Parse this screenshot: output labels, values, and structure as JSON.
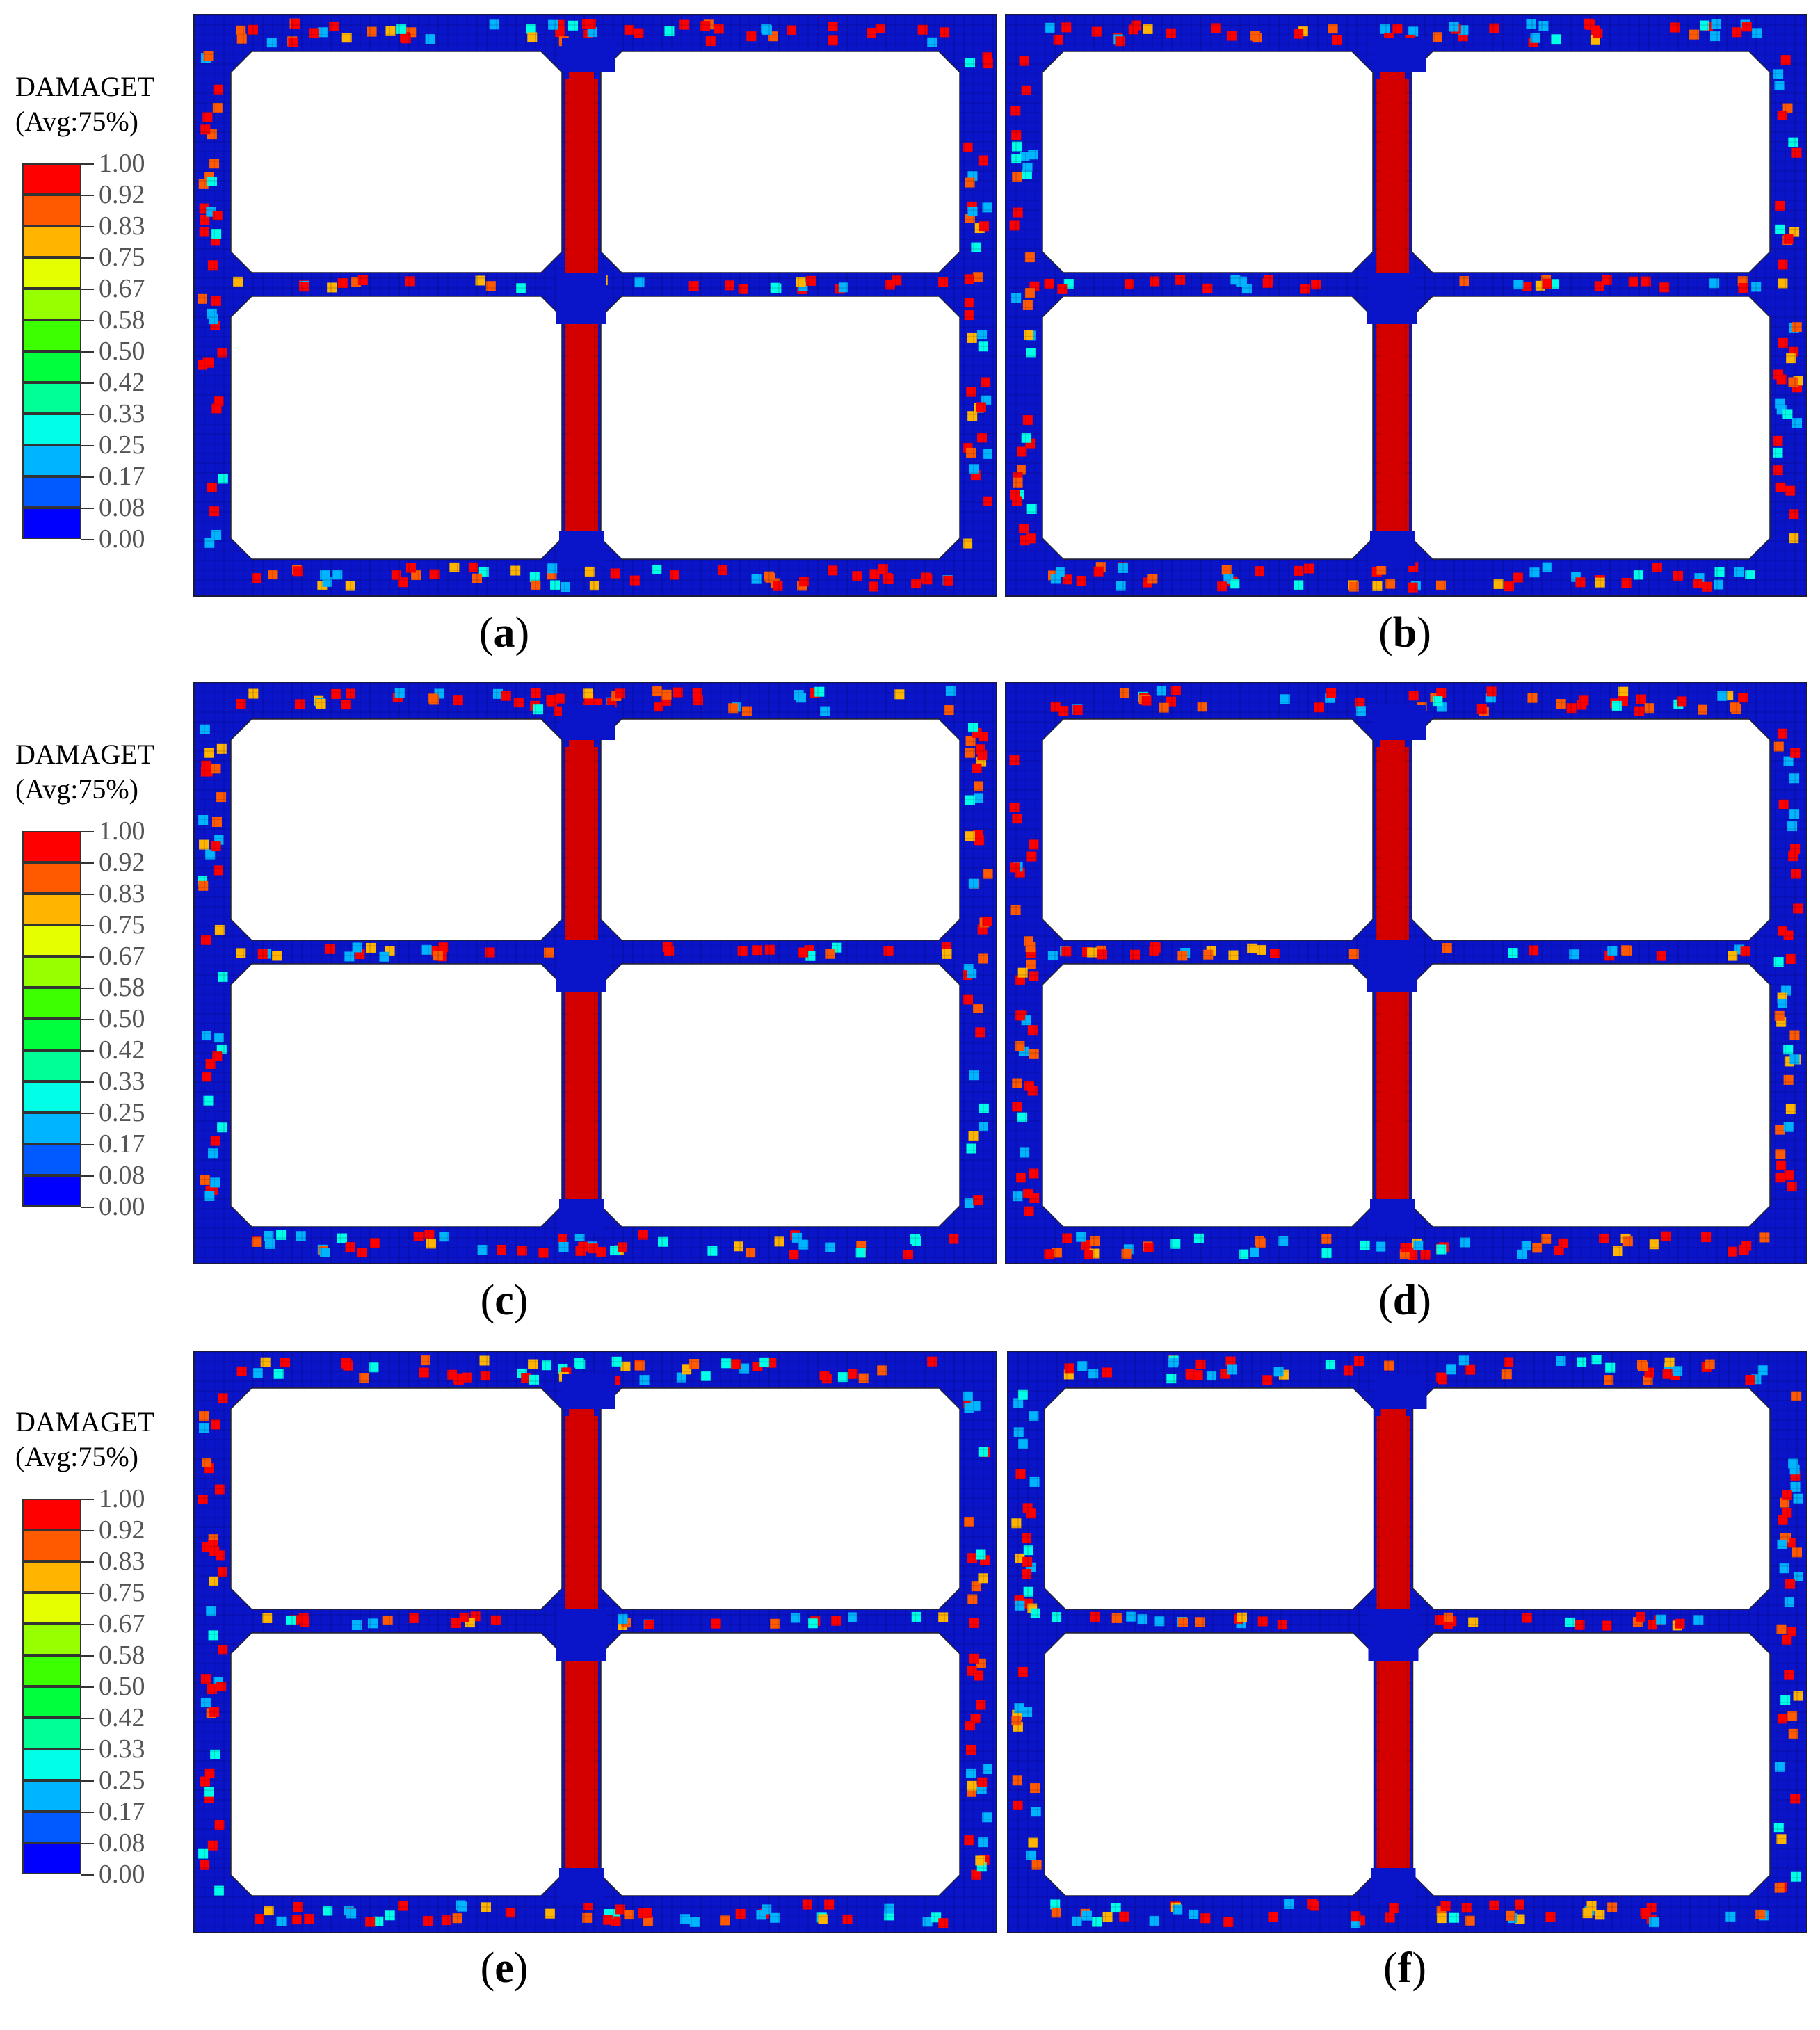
{
  "legend": {
    "title": "DAMAGET",
    "subtitle": "(Avg:75%)",
    "ticks": [
      "1.00",
      "0.92",
      "0.83",
      "0.75",
      "0.67",
      "0.58",
      "0.50",
      "0.42",
      "0.33",
      "0.25",
      "0.17",
      "0.08",
      "0.00"
    ],
    "colors": [
      "#ff0000",
      "#ff5a00",
      "#ffb400",
      "#e6ff00",
      "#96ff00",
      "#3cff00",
      "#00ff3c",
      "#00ff96",
      "#00ffe6",
      "#00b4ff",
      "#005aff",
      "#0000ff"
    ]
  },
  "panels": [
    {
      "id": "a",
      "caption_open": "(",
      "caption_letter": "a",
      "caption_close": ")"
    },
    {
      "id": "b",
      "caption_open": "(",
      "caption_letter": "b",
      "caption_close": ")"
    },
    {
      "id": "c",
      "caption_open": "(",
      "caption_letter": "c",
      "caption_close": ")"
    },
    {
      "id": "d",
      "caption_open": "(",
      "caption_letter": "d",
      "caption_close": ")"
    },
    {
      "id": "e",
      "caption_open": "(",
      "caption_letter": "e",
      "caption_close": ")"
    },
    {
      "id": "f",
      "caption_open": "(",
      "caption_letter": "f",
      "caption_close": ")"
    }
  ],
  "colors": {
    "intact": "#0a14c8",
    "damaged": "#d40000",
    "mesh": "#000033"
  }
}
